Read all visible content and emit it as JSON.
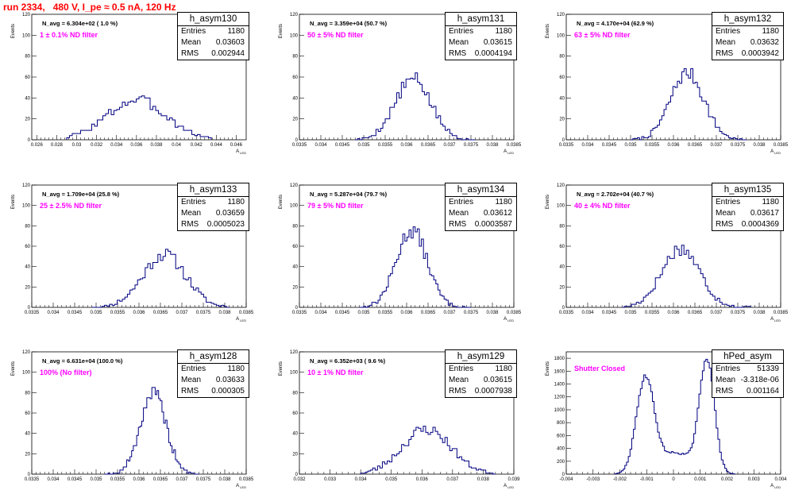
{
  "run_title": "run 2334,   480 V, I_pe ≈ 0.5 nA, 120 Hz",
  "colors": {
    "title": "#ff0000",
    "filter_label": "#ff00ff",
    "histogram": "#000080",
    "axis": "#000000"
  },
  "stat_labels": {
    "entries": "Entries",
    "mean": "Mean",
    "rms": "RMS"
  },
  "chart_data": [
    {
      "type": "histogram",
      "name": "h_asym130",
      "navg": "N_avg = 6.304e+02 ( 1.0 %)",
      "filter": "1 ± 0.1% ND filter",
      "stats": {
        "entries": "1180",
        "mean": "0.03603",
        "rms": "0.002944"
      },
      "xlabel": "A_LED",
      "ylabel": "Events",
      "xlim": [
        0.0255,
        0.047
      ],
      "ylim": [
        0,
        120
      ],
      "xticks": [
        "0.026",
        "0.028",
        "0.03",
        "0.032",
        "0.034",
        "0.036",
        "0.038",
        "0.04",
        "0.042",
        "0.044",
        "0.046"
      ],
      "yticks": [
        "0",
        "20",
        "40",
        "60",
        "80",
        "100",
        "120"
      ],
      "dist": {
        "modes": [
          [
            0.036,
            0.003,
            38
          ]
        ],
        "x_start": 0.029,
        "x_end": 0.0435,
        "bins": 52,
        "seed": 3
      }
    },
    {
      "type": "histogram",
      "name": "h_asym131",
      "navg": "N_avg = 3.359e+04 (50.7 %)",
      "filter": "50 ± 5% ND filter",
      "stats": {
        "entries": "1180",
        "mean": "0.03615",
        "rms": "0.0004194"
      },
      "xlabel": "A_LED",
      "ylabel": "Events",
      "xlim": [
        0.0335,
        0.0385
      ],
      "ylim": [
        0,
        120
      ],
      "xticks": [
        "0.0335",
        "0.034",
        "0.0345",
        "0.035",
        "0.0355",
        "0.036",
        "0.0365",
        "0.037",
        "0.0375",
        "0.038",
        "0.0385"
      ],
      "yticks": [
        "0",
        "20",
        "40",
        "60",
        "80",
        "100",
        "120"
      ],
      "dist": {
        "modes": [
          [
            0.03615,
            0.00042,
            58
          ]
        ],
        "x_start": 0.0348,
        "x_end": 0.0376,
        "bins": 52,
        "seed": 5
      }
    },
    {
      "type": "histogram",
      "name": "h_asym132",
      "navg": "N_avg = 4.170e+04 (62.9 %)",
      "filter": "63 ± 5% ND filter",
      "stats": {
        "entries": "1180",
        "mean": "0.03632",
        "rms": "0.0003942"
      },
      "xlabel": "A_LED",
      "ylabel": "Events",
      "xlim": [
        0.0335,
        0.0385
      ],
      "ylim": [
        0,
        120
      ],
      "xticks": [
        "0.0335",
        "0.034",
        "0.0345",
        "0.035",
        "0.0355",
        "0.036",
        "0.0365",
        "0.037",
        "0.0375",
        "0.038",
        "0.0385"
      ],
      "yticks": [
        "0",
        "20",
        "40",
        "60",
        "80",
        "100",
        "120"
      ],
      "dist": {
        "modes": [
          [
            0.03632,
            0.00039,
            64
          ]
        ],
        "x_start": 0.035,
        "x_end": 0.0377,
        "bins": 52,
        "seed": 7
      }
    },
    {
      "type": "histogram",
      "name": "h_asym133",
      "navg": "N_avg = 1.709e+04 (25.8 %)",
      "filter": "25 ± 2.5% ND filter",
      "stats": {
        "entries": "1180",
        "mean": "0.03659",
        "rms": "0.0005023"
      },
      "xlabel": "A_LED",
      "ylabel": "Events",
      "xlim": [
        0.0335,
        0.0385
      ],
      "ylim": [
        0,
        120
      ],
      "xticks": [
        "0.0335",
        "0.034",
        "0.0345",
        "0.035",
        "0.0355",
        "0.036",
        "0.0365",
        "0.037",
        "0.0375",
        "0.038",
        "0.0385"
      ],
      "yticks": [
        "0",
        "20",
        "40",
        "60",
        "80",
        "100",
        "120"
      ],
      "dist": {
        "modes": [
          [
            0.03659,
            0.0005,
            52
          ]
        ],
        "x_start": 0.0349,
        "x_end": 0.0381,
        "bins": 54,
        "seed": 11
      }
    },
    {
      "type": "histogram",
      "name": "h_asym134",
      "navg": "N_avg = 5.287e+04 (79.7 %)",
      "filter": "79 ± 5% ND filter",
      "stats": {
        "entries": "1180",
        "mean": "0.03612",
        "rms": "0.0003587"
      },
      "xlabel": "A_LED",
      "ylabel": "Events",
      "xlim": [
        0.0335,
        0.0385
      ],
      "ylim": [
        0,
        120
      ],
      "xticks": [
        "0.0335",
        "0.034",
        "0.0345",
        "0.035",
        "0.0355",
        "0.036",
        "0.0365",
        "0.037",
        "0.0375",
        "0.038",
        "0.0385"
      ],
      "yticks": [
        "0",
        "20",
        "40",
        "60",
        "80",
        "100",
        "120"
      ],
      "dist": {
        "modes": [
          [
            0.03612,
            0.00036,
            76
          ]
        ],
        "x_start": 0.0349,
        "x_end": 0.0375,
        "bins": 54,
        "seed": 13
      }
    },
    {
      "type": "histogram",
      "name": "h_asym135",
      "navg": "N_avg = 2.702e+04 (40.7 %)",
      "filter": "40 ± 4% ND filter",
      "stats": {
        "entries": "1180",
        "mean": "0.03617",
        "rms": "0.0004369"
      },
      "xlabel": "A_LED",
      "ylabel": "Events",
      "xlim": [
        0.0335,
        0.0385
      ],
      "ylim": [
        0,
        120
      ],
      "xticks": [
        "0.0335",
        "0.034",
        "0.0345",
        "0.035",
        "0.0355",
        "0.036",
        "0.0365",
        "0.037",
        "0.0375",
        "0.038",
        "0.0385"
      ],
      "yticks": [
        "0",
        "20",
        "40",
        "60",
        "80",
        "100",
        "120"
      ],
      "dist": {
        "modes": [
          [
            0.03617,
            0.00044,
            58
          ]
        ],
        "x_start": 0.0348,
        "x_end": 0.0378,
        "bins": 54,
        "seed": 17
      }
    },
    {
      "type": "histogram",
      "name": "h_asym128",
      "navg": "N_avg = 6.631e+04 (100.0 %)",
      "filter": "100% (No filter)",
      "stats": {
        "entries": "1180",
        "mean": "0.03633",
        "rms": "0.000305"
      },
      "xlabel": "A_LED",
      "ylabel": "Events",
      "xlim": [
        0.0335,
        0.0385
      ],
      "ylim": [
        0,
        120
      ],
      "xticks": [
        "0.0335",
        "0.034",
        "0.0345",
        "0.035",
        "0.0355",
        "0.036",
        "0.0365",
        "0.037",
        "0.0375",
        "0.038",
        "0.0385"
      ],
      "yticks": [
        "0",
        "20",
        "40",
        "60",
        "80",
        "100",
        "120"
      ],
      "dist": {
        "modes": [
          [
            0.03633,
            0.0003,
            80
          ]
        ],
        "x_start": 0.0352,
        "x_end": 0.0374,
        "bins": 56,
        "seed": 19
      }
    },
    {
      "type": "histogram",
      "name": "h_asym129",
      "navg": "N_avg = 6.352e+03 ( 9.6 %)",
      "filter": "10 ± 1% ND filter",
      "stats": {
        "entries": "1180",
        "mean": "0.03615",
        "rms": "0.0007938"
      },
      "xlabel": "A_LED",
      "ylabel": "Events",
      "xlim": [
        0.032,
        0.039
      ],
      "ylim": [
        0,
        120
      ],
      "xticks": [
        "0.032",
        "0.033",
        "0.034",
        "0.035",
        "0.036",
        "0.037",
        "0.038",
        "0.039"
      ],
      "yticks": [
        "0",
        "20",
        "40",
        "60",
        "80",
        "100",
        "120"
      ],
      "dist": {
        "modes": [
          [
            0.03615,
            0.0008,
            44
          ]
        ],
        "x_start": 0.034,
        "x_end": 0.0384,
        "bins": 56,
        "seed": 23
      }
    },
    {
      "type": "histogram",
      "name": "hPed_asym",
      "navg": "",
      "filter": "Shutter Closed",
      "stats": {
        "entries": "51339",
        "mean": "-3.318e-06",
        "rms": "0.001164"
      },
      "xlabel": "A_LED",
      "ylabel": "Events",
      "xlim": [
        -0.004,
        0.004
      ],
      "ylim": [
        0,
        1900
      ],
      "xticks": [
        "-0.004",
        "-0.003",
        "-0.002",
        "-0.001",
        "0",
        "0.001",
        "0.002",
        "0.003",
        "0.004"
      ],
      "yticks": [
        "0",
        "200",
        "400",
        "600",
        "800",
        "1000",
        "1200",
        "1400",
        "1600",
        "1800"
      ],
      "dist": {
        "modes": [
          [
            -0.00105,
            0.00033,
            1480
          ],
          [
            0.00125,
            0.00028,
            1760
          ],
          [
            0.0001,
            0.0006,
            330
          ]
        ],
        "x_start": -0.0022,
        "x_end": 0.0023,
        "bins": 70,
        "seed": 29
      }
    }
  ]
}
